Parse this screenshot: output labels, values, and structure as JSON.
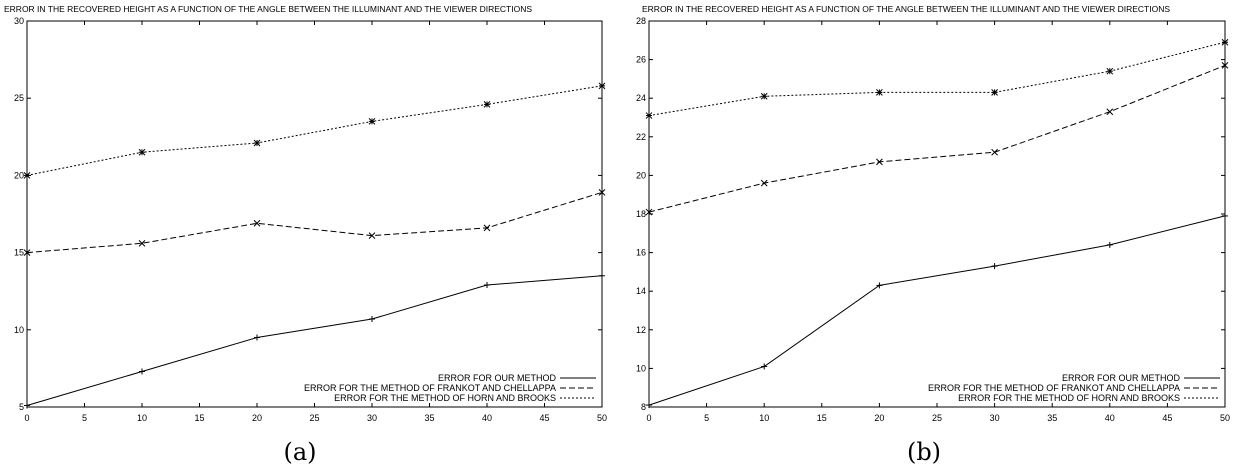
{
  "chart_data": [
    {
      "type": "line",
      "title": "ERROR IN THE RECOVERED HEIGHT AS A FUNCTION OF THE ANGLE BETWEEN THE ILLUMINANT AND THE VIEWER DIRECTIONS",
      "caption": "(a)",
      "xlabel": "",
      "ylabel": "",
      "xlim": [
        0,
        50
      ],
      "ylim": [
        5,
        30
      ],
      "xticks": [
        "0",
        "5",
        "10",
        "15",
        "20",
        "25",
        "30",
        "35",
        "40",
        "45",
        "50"
      ],
      "yticks": [
        "5",
        "10",
        "15",
        "20",
        "25",
        "30"
      ],
      "grid": false,
      "legend_position": "bottom-right",
      "x": [
        0,
        10,
        20,
        30,
        40,
        50
      ],
      "series": [
        {
          "name": "ERROR FOR OUR METHOD",
          "marker": "+",
          "dash": "solid",
          "values": [
            5.1,
            7.3,
            9.5,
            10.7,
            12.9,
            13.5
          ]
        },
        {
          "name": "ERROR FOR THE METHOD OF FRANKOT AND CHELLAPPA",
          "marker": "x",
          "dash": "dashed",
          "values": [
            15.0,
            15.6,
            16.9,
            16.1,
            16.6,
            18.9
          ]
        },
        {
          "name": "ERROR FOR THE METHOD OF HORN AND BROOKS",
          "marker": "*",
          "dash": "dotted",
          "values": [
            20.0,
            21.5,
            22.1,
            23.5,
            24.6,
            25.8
          ]
        }
      ]
    },
    {
      "type": "line",
      "title": "ERROR IN THE RECOVERED HEIGHT AS A FUNCTION OF THE ANGLE BETWEEN THE ILLUMINANT AND THE VIEWER DIRECTIONS",
      "caption": "(b)",
      "xlabel": "",
      "ylabel": "",
      "xlim": [
        0,
        50
      ],
      "ylim": [
        8,
        28
      ],
      "xticks": [
        "0",
        "5",
        "10",
        "15",
        "20",
        "25",
        "30",
        "35",
        "40",
        "45",
        "50"
      ],
      "yticks": [
        "8",
        "10",
        "12",
        "14",
        "16",
        "18",
        "20",
        "22",
        "24",
        "26",
        "28"
      ],
      "grid": false,
      "legend_position": "bottom-right",
      "x": [
        0,
        10,
        20,
        30,
        40,
        50
      ],
      "series": [
        {
          "name": "ERROR FOR OUR METHOD",
          "marker": "+",
          "dash": "solid",
          "values": [
            8.1,
            10.1,
            14.3,
            15.3,
            16.4,
            17.9
          ]
        },
        {
          "name": "ERROR FOR THE METHOD OF FRANKOT AND CHELLAPPA",
          "marker": "x",
          "dash": "dashed",
          "values": [
            18.1,
            19.6,
            20.7,
            21.2,
            23.3,
            25.7
          ]
        },
        {
          "name": "ERROR FOR THE METHOD OF HORN AND BROOKS",
          "marker": "*",
          "dash": "dotted",
          "values": [
            23.1,
            24.1,
            24.3,
            24.3,
            25.4,
            26.9
          ]
        }
      ]
    }
  ]
}
